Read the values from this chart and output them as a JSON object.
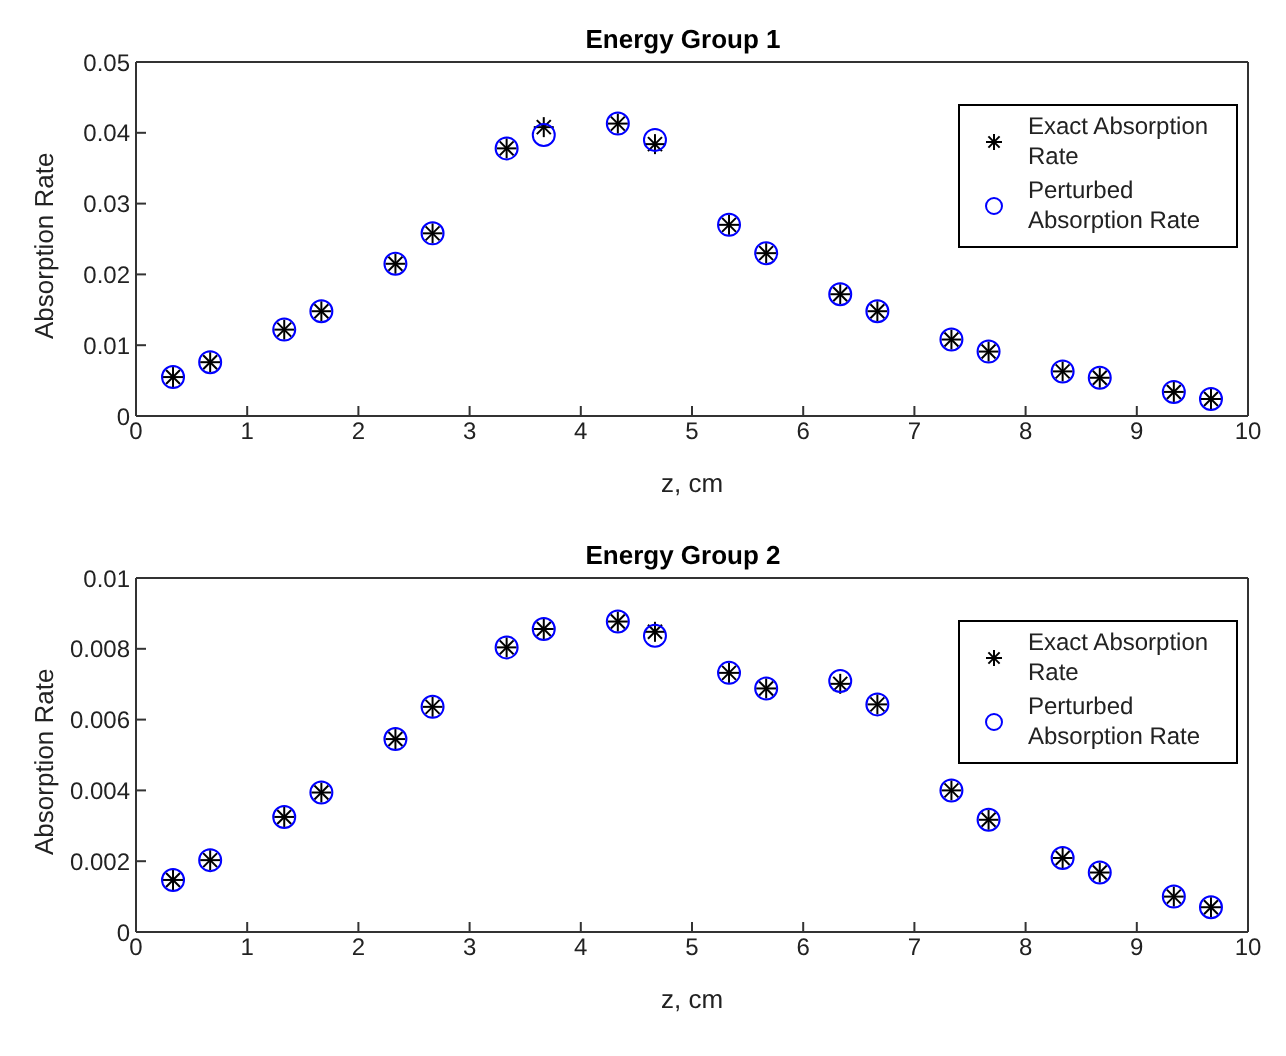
{
  "chart_data": [
    {
      "type": "scatter",
      "title": "Energy Group 1",
      "xlabel": "z, cm",
      "ylabel": "Absorption Rate",
      "x": [
        0.333,
        0.667,
        1.333,
        1.667,
        2.333,
        2.667,
        3.333,
        3.667,
        4.333,
        4.667,
        5.333,
        5.667,
        6.333,
        6.667,
        7.333,
        7.667,
        8.333,
        8.667,
        9.333,
        9.667
      ],
      "series": [
        {
          "name": "Exact Absorption Rate",
          "color": "#000000",
          "marker": "cross",
          "values": [
            0.0055,
            0.0076,
            0.0122,
            0.0148,
            0.0215,
            0.0258,
            0.0378,
            0.0408,
            0.0413,
            0.0384,
            0.027,
            0.023,
            0.0172,
            0.0148,
            0.0108,
            0.0091,
            0.0063,
            0.0054,
            0.0034,
            0.0024
          ]
        },
        {
          "name": "Perturbed Absorption Rate",
          "color": "#0000ff",
          "marker": "circle",
          "values": [
            0.0055,
            0.0076,
            0.0122,
            0.0148,
            0.0215,
            0.0258,
            0.0378,
            0.0397,
            0.0413,
            0.039,
            0.027,
            0.023,
            0.0172,
            0.0148,
            0.0108,
            0.0091,
            0.0063,
            0.0054,
            0.0034,
            0.0024
          ]
        }
      ],
      "xlim": [
        0,
        10
      ],
      "xticks": [
        0,
        1,
        2,
        3,
        4,
        5,
        6,
        7,
        8,
        9,
        10
      ],
      "ylim": [
        0,
        0.05
      ],
      "yticks": [
        0,
        0.01,
        0.02,
        0.03,
        0.04,
        0.05
      ],
      "legend": "top right"
    },
    {
      "type": "scatter",
      "title": "Energy Group 2",
      "xlabel": "z, cm",
      "ylabel": "Absorption Rate",
      "x": [
        0.333,
        0.667,
        1.333,
        1.667,
        2.333,
        2.667,
        3.333,
        3.667,
        4.333,
        4.667,
        5.333,
        5.667,
        6.333,
        6.667,
        7.333,
        7.667,
        8.333,
        8.667,
        9.333,
        9.667
      ],
      "series": [
        {
          "name": "Exact Absorption Rate",
          "color": "#000000",
          "marker": "cross",
          "values": [
            0.00147,
            0.00203,
            0.00325,
            0.00394,
            0.00545,
            0.00636,
            0.00804,
            0.00856,
            0.00877,
            0.00848,
            0.00732,
            0.00688,
            0.00701,
            0.00643,
            0.004,
            0.00317,
            0.00209,
            0.00168,
            0.001,
            0.0007
          ]
        },
        {
          "name": "Perturbed Absorption Rate",
          "color": "#0000ff",
          "marker": "circle",
          "values": [
            0.00147,
            0.00203,
            0.00325,
            0.00394,
            0.00545,
            0.00636,
            0.00804,
            0.00856,
            0.00877,
            0.00837,
            0.00732,
            0.00688,
            0.00709,
            0.00643,
            0.004,
            0.00317,
            0.00209,
            0.00168,
            0.001,
            0.0007
          ]
        }
      ],
      "xlim": [
        0,
        10
      ],
      "xticks": [
        0,
        1,
        2,
        3,
        4,
        5,
        6,
        7,
        8,
        9,
        10
      ],
      "ylim": [
        0,
        0.01
      ],
      "yticks": [
        0,
        0.002,
        0.004,
        0.006,
        0.008,
        0.01
      ],
      "legend": "top right"
    }
  ]
}
